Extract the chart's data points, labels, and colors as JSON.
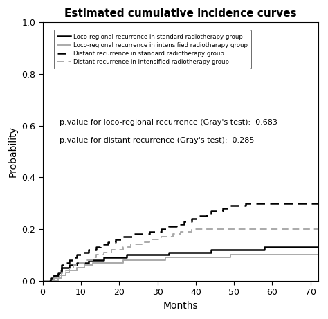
{
  "title": "Estimated cumulative incidence curves",
  "xlabel": "Months",
  "ylabel": "Probability",
  "xlim": [
    0,
    72
  ],
  "ylim": [
    0,
    1.0
  ],
  "xticks": [
    0,
    10,
    20,
    30,
    40,
    50,
    60,
    70
  ],
  "yticks": [
    0.0,
    0.2,
    0.4,
    0.6,
    0.8,
    1.0
  ],
  "pvalue_loco": "p.value for loco-regional recurrence (Gray's test):  0.683",
  "pvalue_distant": "p.value for distant recurrence (Gray's test):  0.285",
  "legend_entries": [
    "Loco-regional recurrence in standard radiotherapy group",
    "Loco-regional recurrence in intensified radiotherapy group",
    "Distant recurrence in standard radiotherapy group",
    "Distant recurrence in intensified radiotherapy group"
  ],
  "loco_standard_x": [
    0,
    1,
    2,
    3,
    4,
    5,
    6,
    7,
    8,
    9,
    10,
    11,
    12,
    13,
    14,
    15,
    16,
    17,
    18,
    19,
    20,
    21,
    22,
    23,
    24,
    25,
    26,
    27,
    28,
    29,
    30,
    31,
    32,
    33,
    34,
    35,
    36,
    37,
    38,
    39,
    40,
    41,
    42,
    43,
    44,
    45,
    46,
    47,
    48,
    49,
    50,
    51,
    52,
    53,
    54,
    55,
    56,
    57,
    58,
    59,
    60,
    61,
    62,
    63,
    64,
    65,
    66,
    67,
    68,
    69,
    70,
    71,
    72
  ],
  "loco_standard_y": [
    0.0,
    0.0,
    0.01,
    0.02,
    0.03,
    0.05,
    0.05,
    0.06,
    0.06,
    0.07,
    0.07,
    0.07,
    0.08,
    0.08,
    0.08,
    0.08,
    0.09,
    0.09,
    0.09,
    0.09,
    0.09,
    0.09,
    0.1,
    0.1,
    0.1,
    0.1,
    0.1,
    0.1,
    0.1,
    0.1,
    0.1,
    0.1,
    0.1,
    0.11,
    0.11,
    0.11,
    0.11,
    0.11,
    0.11,
    0.11,
    0.11,
    0.11,
    0.11,
    0.11,
    0.12,
    0.12,
    0.12,
    0.12,
    0.12,
    0.12,
    0.12,
    0.12,
    0.12,
    0.12,
    0.12,
    0.12,
    0.12,
    0.12,
    0.13,
    0.13,
    0.13,
    0.13,
    0.13,
    0.13,
    0.13,
    0.13,
    0.13,
    0.13,
    0.13,
    0.13,
    0.13,
    0.13,
    0.13
  ],
  "loco_intensified_x": [
    0,
    1,
    2,
    3,
    4,
    5,
    6,
    7,
    8,
    9,
    10,
    11,
    12,
    13,
    14,
    15,
    16,
    17,
    18,
    19,
    20,
    21,
    22,
    23,
    24,
    25,
    26,
    27,
    28,
    29,
    30,
    31,
    32,
    33,
    34,
    35,
    36,
    37,
    38,
    39,
    40,
    41,
    42,
    43,
    44,
    45,
    46,
    47,
    48,
    49,
    50,
    51,
    52,
    53,
    54,
    55,
    56,
    57,
    58,
    59,
    60,
    61,
    62,
    63,
    64,
    65,
    66,
    67,
    68,
    69,
    70,
    71,
    72
  ],
  "loco_intensified_y": [
    0.0,
    0.0,
    0.0,
    0.0,
    0.01,
    0.02,
    0.03,
    0.04,
    0.04,
    0.05,
    0.05,
    0.06,
    0.06,
    0.07,
    0.07,
    0.07,
    0.07,
    0.07,
    0.07,
    0.07,
    0.07,
    0.08,
    0.08,
    0.08,
    0.08,
    0.08,
    0.08,
    0.08,
    0.08,
    0.08,
    0.08,
    0.08,
    0.09,
    0.09,
    0.09,
    0.09,
    0.09,
    0.09,
    0.09,
    0.09,
    0.09,
    0.09,
    0.09,
    0.09,
    0.09,
    0.09,
    0.09,
    0.09,
    0.09,
    0.1,
    0.1,
    0.1,
    0.1,
    0.1,
    0.1,
    0.1,
    0.1,
    0.1,
    0.1,
    0.1,
    0.1,
    0.1,
    0.1,
    0.1,
    0.1,
    0.1,
    0.1,
    0.1,
    0.1,
    0.1,
    0.1,
    0.1,
    0.1
  ],
  "dist_standard_x": [
    0,
    1,
    2,
    3,
    4,
    5,
    6,
    7,
    8,
    9,
    10,
    11,
    12,
    13,
    14,
    15,
    16,
    17,
    18,
    19,
    20,
    21,
    22,
    23,
    24,
    25,
    26,
    27,
    28,
    29,
    30,
    31,
    32,
    33,
    34,
    35,
    36,
    37,
    38,
    39,
    40,
    41,
    42,
    43,
    44,
    45,
    46,
    47,
    48,
    49,
    50,
    51,
    52,
    53,
    54,
    55,
    56,
    57,
    58,
    59,
    60,
    61,
    62,
    63,
    64,
    65,
    66,
    67,
    68,
    69,
    70,
    71,
    72
  ],
  "dist_standard_y": [
    0.0,
    0.0,
    0.01,
    0.02,
    0.04,
    0.06,
    0.07,
    0.08,
    0.09,
    0.1,
    0.11,
    0.11,
    0.12,
    0.12,
    0.13,
    0.14,
    0.14,
    0.15,
    0.15,
    0.16,
    0.16,
    0.17,
    0.17,
    0.17,
    0.18,
    0.18,
    0.18,
    0.18,
    0.19,
    0.19,
    0.19,
    0.2,
    0.2,
    0.21,
    0.21,
    0.22,
    0.22,
    0.23,
    0.23,
    0.24,
    0.24,
    0.25,
    0.25,
    0.26,
    0.27,
    0.27,
    0.27,
    0.28,
    0.28,
    0.29,
    0.29,
    0.29,
    0.29,
    0.3,
    0.3,
    0.3,
    0.3,
    0.3,
    0.3,
    0.3,
    0.3,
    0.3,
    0.3,
    0.3,
    0.3,
    0.3,
    0.3,
    0.3,
    0.3,
    0.3,
    0.3,
    0.3,
    0.3
  ],
  "dist_intensified_x": [
    0,
    1,
    2,
    3,
    4,
    5,
    6,
    7,
    8,
    9,
    10,
    11,
    12,
    13,
    14,
    15,
    16,
    17,
    18,
    19,
    20,
    21,
    22,
    23,
    24,
    25,
    26,
    27,
    28,
    29,
    30,
    31,
    32,
    33,
    34,
    35,
    36,
    37,
    38,
    39,
    40,
    41,
    42,
    43,
    44,
    45,
    46,
    47,
    48,
    49,
    50,
    51,
    52,
    53,
    54,
    55,
    56,
    57,
    58,
    59,
    60,
    61,
    62,
    63,
    64,
    65,
    66,
    67,
    68,
    69,
    70,
    71,
    72
  ],
  "dist_intensified_y": [
    0.0,
    0.0,
    0.0,
    0.01,
    0.02,
    0.03,
    0.04,
    0.05,
    0.06,
    0.07,
    0.07,
    0.08,
    0.08,
    0.09,
    0.1,
    0.1,
    0.11,
    0.11,
    0.12,
    0.12,
    0.12,
    0.13,
    0.13,
    0.14,
    0.14,
    0.14,
    0.15,
    0.15,
    0.16,
    0.16,
    0.16,
    0.17,
    0.17,
    0.17,
    0.18,
    0.18,
    0.19,
    0.19,
    0.19,
    0.2,
    0.2,
    0.2,
    0.2,
    0.2,
    0.2,
    0.2,
    0.2,
    0.2,
    0.2,
    0.2,
    0.2,
    0.2,
    0.2,
    0.2,
    0.2,
    0.2,
    0.2,
    0.2,
    0.2,
    0.2,
    0.2,
    0.2,
    0.2,
    0.2,
    0.2,
    0.2,
    0.2,
    0.2,
    0.2,
    0.2,
    0.2,
    0.2,
    0.2
  ],
  "color_black": "#000000",
  "color_gray": "#aaaaaa",
  "background_color": "#ffffff",
  "fig_width": 4.74,
  "fig_height": 4.61,
  "dpi": 100
}
